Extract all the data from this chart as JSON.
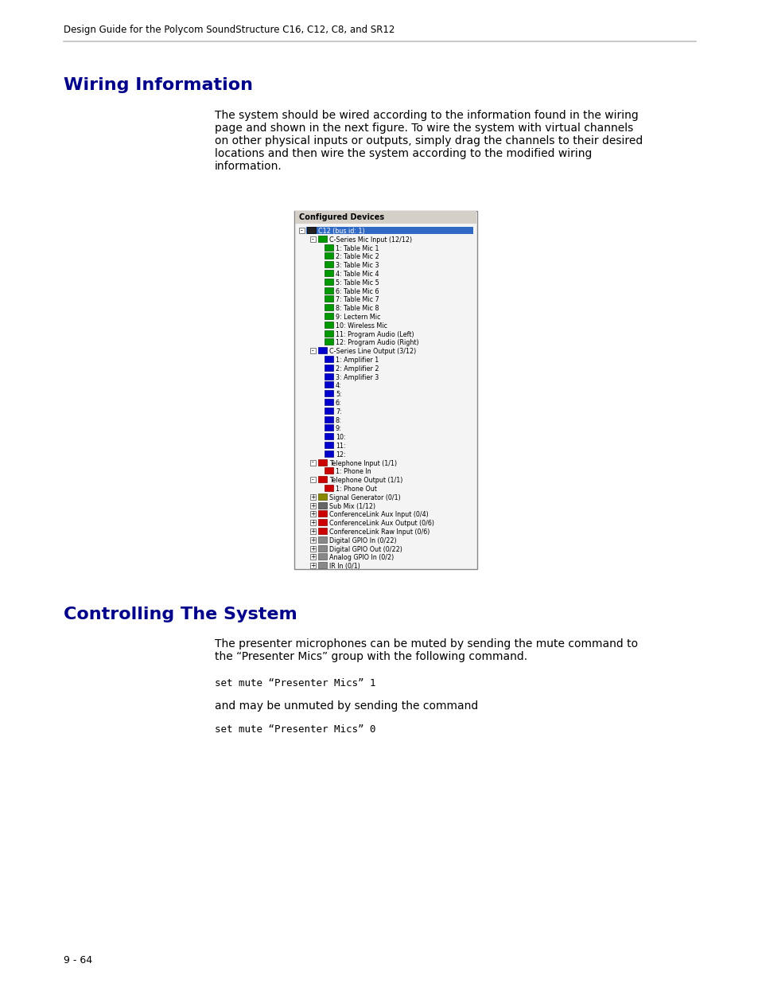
{
  "background_color": "#ffffff",
  "header_text": "Design Guide for the Polycom SoundStructure C16, C12, C8, and SR12",
  "header_color": "#000000",
  "header_font_size": 8.5,
  "divider_color": "#c0c0c0",
  "section1_title": "Wiring Information",
  "section1_title_color": "#00008B",
  "section1_title_font_size": 16,
  "section1_body": "The system should be wired according to the information found in the wiring\npage and shown in the next figure. To wire the system with virtual channels\non other physical inputs or outputs, simply drag the channels to their desired\nlocations and then wire the system according to the modified wiring\ninformation.",
  "section2_title": "Controlling The System",
  "section2_title_color": "#00008B",
  "section2_title_font_size": 16,
  "section2_body": "The presenter microphones can be muted by sending the mute command to\nthe “Presenter Mics” group with the following command.",
  "code1": "set mute “Presenter Mics” 1",
  "between_code": "and may be unmuted by sending the command",
  "code2": "set mute “Presenter Mics” 0",
  "footer_text": "9 - 64",
  "body_font_size": 10,
  "code_font_size": 9,
  "body_color": "#000000"
}
